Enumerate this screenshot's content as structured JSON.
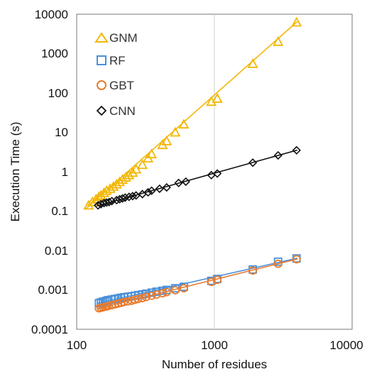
{
  "chart_data": {
    "type": "scatter",
    "xlabel": "Number of residues",
    "ylabel": "Execution Time (s)",
    "x_scale": "log",
    "y_scale": "log",
    "xlim": [
      100,
      10000
    ],
    "ylim": [
      0.0001,
      10000
    ],
    "x_ticks": [
      "100",
      "1000",
      "10000"
    ],
    "y_ticks": [
      "0.0001",
      "0.001",
      "0.01",
      "0.1",
      "1",
      "10",
      "100",
      "1000",
      "10000"
    ],
    "grid": "vertical only",
    "legend_position": "top-left",
    "series": [
      {
        "name": "GNM",
        "marker": "triangle",
        "color": "#F2B705",
        "x": [
          122,
          130,
          138,
          145,
          150,
          158,
          165,
          175,
          185,
          195,
          205,
          215,
          228,
          240,
          255,
          270,
          300,
          330,
          350,
          420,
          450,
          520,
          600,
          950,
          1050,
          1900,
          2900,
          3950
        ],
        "y": [
          0.14,
          0.17,
          0.2,
          0.23,
          0.25,
          0.29,
          0.33,
          0.37,
          0.42,
          0.48,
          0.55,
          0.63,
          0.72,
          0.82,
          0.95,
          1.15,
          1.5,
          2.2,
          2.8,
          4.8,
          6.0,
          10.0,
          16.0,
          60.0,
          72.0,
          550.0,
          2000.0,
          6200.0
        ],
        "fit": {
          "x": [
            115,
            4000
          ],
          "y": [
            0.11,
            6500.0
          ]
        }
      },
      {
        "name": "RF",
        "marker": "square",
        "color": "#4A90D9",
        "x": [
          145,
          150,
          155,
          160,
          165,
          170,
          180,
          190,
          200,
          210,
          220,
          235,
          250,
          265,
          280,
          300,
          320,
          350,
          380,
          420,
          450,
          520,
          600,
          950,
          1050,
          1900,
          2900,
          3950
        ],
        "y": [
          0.00046,
          0.00048,
          0.0005,
          0.00051,
          0.00053,
          0.00055,
          0.00057,
          0.00059,
          0.00061,
          0.00063,
          0.00065,
          0.00067,
          0.00069,
          0.00071,
          0.00074,
          0.00077,
          0.0008,
          0.00085,
          0.0009,
          0.00095,
          0.001,
          0.0011,
          0.0012,
          0.0017,
          0.0019,
          0.0033,
          0.0052,
          0.0063
        ],
        "fit": {
          "x": [
            140,
            4000
          ],
          "y": [
            0.00045,
            0.0064
          ]
        }
      },
      {
        "name": "GBT",
        "marker": "circle",
        "color": "#E97B2F",
        "x": [
          145,
          150,
          155,
          160,
          165,
          170,
          180,
          190,
          200,
          210,
          220,
          235,
          250,
          265,
          280,
          300,
          320,
          350,
          380,
          420,
          450,
          520,
          600,
          950,
          1050,
          1900,
          2900,
          3950
        ],
        "y": [
          0.00034,
          0.00035,
          0.00036,
          0.00037,
          0.00038,
          0.00039,
          0.00041,
          0.00043,
          0.00045,
          0.00047,
          0.00049,
          0.00051,
          0.00053,
          0.00056,
          0.00059,
          0.00062,
          0.00066,
          0.00071,
          0.00076,
          0.00082,
          0.00088,
          0.00098,
          0.0011,
          0.0016,
          0.0018,
          0.0031,
          0.0046,
          0.006
        ],
        "fit": {
          "x": [
            140,
            4000
          ],
          "y": [
            0.00033,
            0.0061
          ]
        }
      },
      {
        "name": "CNN",
        "marker": "diamond",
        "color": "#111111",
        "x": [
          143,
          150,
          158,
          165,
          172,
          180,
          195,
          205,
          215,
          225,
          240,
          255,
          270,
          300,
          330,
          350,
          400,
          450,
          550,
          620,
          950,
          1050,
          1900,
          2900,
          3950
        ],
        "y": [
          0.14,
          0.15,
          0.16,
          0.165,
          0.17,
          0.18,
          0.19,
          0.2,
          0.21,
          0.22,
          0.23,
          0.24,
          0.25,
          0.27,
          0.3,
          0.33,
          0.37,
          0.4,
          0.52,
          0.56,
          0.82,
          0.9,
          1.7,
          2.6,
          3.5
        ],
        "fit": {
          "x": [
            140,
            4000
          ],
          "y": [
            0.135,
            3.55
          ]
        }
      }
    ]
  }
}
